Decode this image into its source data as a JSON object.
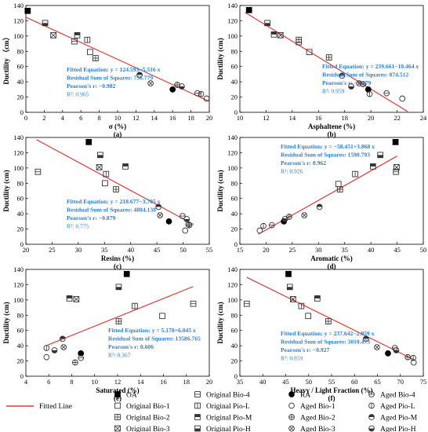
{
  "colors": {
    "fit_line": "#e53935",
    "annotation": "#2e7fd0",
    "axis": "#000000",
    "marker": "#333333"
  },
  "chart_data": [
    {
      "panel": "(a)",
      "type": "scatter",
      "xlabel": "σ (%)",
      "ylabel": "Ductility （cm）",
      "xlim": [
        0,
        20
      ],
      "ylim": [
        0,
        140
      ],
      "xticks": [
        0,
        2,
        4,
        6,
        8,
        10,
        12,
        14,
        16,
        18,
        20
      ],
      "yticks": [
        0,
        20,
        40,
        60,
        80,
        100,
        120,
        140
      ],
      "fit": {
        "slope": -5.516,
        "intercept": 124.593,
        "x_range": [
          0,
          20
        ]
      },
      "annotation": {
        "equation": "Fitted Equation: y = 124.593−5.516 x",
        "rss": "Residual Sum of Squares: 756.779",
        "pearson": "Pearson's r: −0.982",
        "r2": "R²: 0.965"
      },
      "points": [
        {
          "x": 0.2,
          "y": 133,
          "m": "OA"
        },
        {
          "x": 2.1,
          "y": 117,
          "m": "Original Pio-H"
        },
        {
          "x": 3.0,
          "y": 101,
          "m": "Original Bio-3"
        },
        {
          "x": 5.3,
          "y": 93,
          "m": "Original Bio-4"
        },
        {
          "x": 5.6,
          "y": 101,
          "m": "Original Pio-M"
        },
        {
          "x": 6.7,
          "y": 95,
          "m": "Original Pio-L"
        },
        {
          "x": 7.0,
          "y": 79,
          "m": "Original Bio-1"
        },
        {
          "x": 7.6,
          "y": 71,
          "m": "Original Bio-2"
        },
        {
          "x": 12.4,
          "y": 49,
          "m": "Aged Pio-M"
        },
        {
          "x": 13.6,
          "y": 38,
          "m": "Aged Bio-3"
        },
        {
          "x": 16.0,
          "y": 30,
          "m": "RA"
        },
        {
          "x": 16.5,
          "y": 36,
          "m": "Aged Bio-2"
        },
        {
          "x": 17.0,
          "y": 34,
          "m": "Aged Pio-H"
        },
        {
          "x": 18.7,
          "y": 25,
          "m": "Aged Bio-4"
        },
        {
          "x": 19.1,
          "y": 24,
          "m": "Aged Pio-L"
        },
        {
          "x": 19.7,
          "y": 18,
          "m": "Aged Bio-1"
        }
      ]
    },
    {
      "panel": "(b)",
      "type": "scatter",
      "xlabel": "Asphaltene (%)",
      "ylabel": "Ductility (cm)",
      "xlim": [
        10,
        24
      ],
      "ylim": [
        0,
        140
      ],
      "xticks": [
        10,
        12,
        14,
        16,
        18,
        20,
        22,
        24
      ],
      "yticks": [
        0,
        20,
        40,
        60,
        80,
        100,
        120,
        140
      ],
      "fit": {
        "slope": -10.464,
        "intercept": 239.661,
        "x_range": [
          10.4,
          22.8
        ]
      },
      "annotation": {
        "equation": "Fitted Equation: y = 239.661−10.464 x",
        "rss": "Residual Sum of Squares: 874.512",
        "pearson": "Pearson's r: −0.979",
        "r2": "R²: 0.959"
      },
      "points": [
        {
          "x": 10.7,
          "y": 134,
          "m": "OA"
        },
        {
          "x": 12.1,
          "y": 117,
          "m": "Original Pio-H"
        },
        {
          "x": 12.6,
          "y": 102,
          "m": "Original Pio-M"
        },
        {
          "x": 13.1,
          "y": 101,
          "m": "Original Bio-3"
        },
        {
          "x": 14.5,
          "y": 95,
          "m": "Original Pio-L"
        },
        {
          "x": 14.5,
          "y": 92,
          "m": "Original Bio-4"
        },
        {
          "x": 15.3,
          "y": 79,
          "m": "Original Bio-1"
        },
        {
          "x": 16.8,
          "y": 72,
          "m": "Original Bio-2"
        },
        {
          "x": 17.8,
          "y": 48,
          "m": "Aged Pio-M"
        },
        {
          "x": 18.5,
          "y": 34,
          "m": "Aged Pio-H"
        },
        {
          "x": 19.1,
          "y": 38,
          "m": "Aged Bio-3"
        },
        {
          "x": 19.4,
          "y": 37,
          "m": "Aged Bio-2"
        },
        {
          "x": 19.8,
          "y": 30,
          "m": "RA"
        },
        {
          "x": 19.9,
          "y": 24,
          "m": "Aged Pio-L"
        },
        {
          "x": 21.2,
          "y": 25,
          "m": "Aged Bio-4"
        },
        {
          "x": 22.4,
          "y": 18,
          "m": "Aged Bio-1"
        }
      ]
    },
    {
      "panel": "(c)",
      "type": "scatter",
      "xlabel": "Resins (%)",
      "ylabel": "Ductility (cm)",
      "xlim": [
        20,
        55
      ],
      "ylim": [
        0,
        140
      ],
      "xticks": [
        20,
        25,
        30,
        35,
        40,
        45,
        50,
        55
      ],
      "yticks": [
        0,
        20,
        40,
        60,
        80,
        100,
        120,
        140
      ],
      "fit": {
        "slope": -3.705,
        "intercept": 218.677,
        "x_range": [
          22,
          52
        ]
      },
      "annotation": {
        "equation": "Fitted Equation: y = 218.677−3.705 x",
        "rss": "Residual Sum of Squares: 4884.138",
        "pearson": "Pearson's r: −0.879",
        "r2": "R²: 0.775"
      },
      "points": [
        {
          "x": 22.3,
          "y": 95,
          "m": "Original Bio-4"
        },
        {
          "x": 32.0,
          "y": 134,
          "m": "OA"
        },
        {
          "x": 34.2,
          "y": 117,
          "m": "Original Pio-H"
        },
        {
          "x": 34.0,
          "y": 101,
          "m": "Original Bio-3"
        },
        {
          "x": 35.3,
          "y": 92,
          "m": "Original Pio-L"
        },
        {
          "x": 35.1,
          "y": 80,
          "m": "Original Bio-1"
        },
        {
          "x": 37.2,
          "y": 72,
          "m": "Original Bio-2"
        },
        {
          "x": 39.0,
          "y": 102,
          "m": "Original Pio-M"
        },
        {
          "x": 45.3,
          "y": 49,
          "m": "Aged Pio-M"
        },
        {
          "x": 45.6,
          "y": 38,
          "m": "Aged Bio-3"
        },
        {
          "x": 47.3,
          "y": 30,
          "m": "RA"
        },
        {
          "x": 49.9,
          "y": 37,
          "m": "Aged Bio-4"
        },
        {
          "x": 50.4,
          "y": 18,
          "m": "Aged Bio-1"
        },
        {
          "x": 50.7,
          "y": 33,
          "m": "Aged Pio-H"
        },
        {
          "x": 51.0,
          "y": 26,
          "m": "Aged Pio-L"
        },
        {
          "x": 51.2,
          "y": 25,
          "m": "Aged Bio-2"
        }
      ]
    },
    {
      "panel": "(d)",
      "type": "scatter",
      "xlabel": "Aromatic (%)",
      "ylabel": "Ductility (cm)",
      "xlim": [
        15,
        50
      ],
      "ylim": [
        0,
        140
      ],
      "xticks": [
        15,
        20,
        25,
        30,
        35,
        40,
        45,
        50
      ],
      "yticks": [
        0,
        20,
        40,
        60,
        80,
        100,
        120,
        140
      ],
      "fit": {
        "slope": 3.868,
        "intercept": -58.451,
        "x_range": [
          18.5,
          45
        ]
      },
      "annotation": {
        "equation": "Fitted Equation: y = −58.451+3.868 x",
        "rss": "Residual Sum of Squares: 1590.793",
        "pearson": "Pearson's r: 0.962",
        "r2": "R²: 0.926"
      },
      "points": [
        {
          "x": 18.8,
          "y": 18,
          "m": "Aged Bio-1"
        },
        {
          "x": 19.5,
          "y": 24,
          "m": "Aged Pio-L"
        },
        {
          "x": 21.1,
          "y": 25,
          "m": "Aged Bio-4"
        },
        {
          "x": 23.4,
          "y": 30,
          "m": "RA"
        },
        {
          "x": 23.6,
          "y": 33,
          "m": "Aged Pio-H"
        },
        {
          "x": 24.4,
          "y": 36,
          "m": "Aged Bio-2"
        },
        {
          "x": 27.3,
          "y": 38,
          "m": "Aged Bio-3"
        },
        {
          "x": 30.2,
          "y": 49,
          "m": "Aged Pio-M"
        },
        {
          "x": 33.8,
          "y": 79,
          "m": "Original Bio-1"
        },
        {
          "x": 34.1,
          "y": 72,
          "m": "Original Bio-2"
        },
        {
          "x": 37.0,
          "y": 92,
          "m": "Original Pio-L"
        },
        {
          "x": 40.4,
          "y": 102,
          "m": "Original Pio-M"
        },
        {
          "x": 41.8,
          "y": 117,
          "m": "Original Pio-H"
        },
        {
          "x": 44.7,
          "y": 134,
          "m": "OA"
        },
        {
          "x": 44.8,
          "y": 95,
          "m": "Original Bio-4"
        },
        {
          "x": 44.9,
          "y": 101,
          "m": "Original Bio-3"
        }
      ]
    },
    {
      "panel": "(e)",
      "type": "scatter",
      "xlabel": "Saturated (%)",
      "ylabel": "Ductility (cm)",
      "xlim": [
        4,
        20
      ],
      "ylim": [
        0,
        140
      ],
      "xticks": [
        4,
        6,
        8,
        10,
        12,
        14,
        16,
        18,
        20
      ],
      "yticks": [
        0,
        20,
        40,
        60,
        80,
        100,
        120,
        140
      ],
      "fit": {
        "slope": 6.045,
        "intercept": 5.178,
        "x_range": [
          5.9,
          18.6
        ]
      },
      "annotation": {
        "equation": "Fitted Equation: y = 5.178+6.045 x",
        "rss": "Residual Sum of Squares: 13586.765",
        "pearson": "Pearson's r: 0.606",
        "r2": "R²: 0.367"
      },
      "points": [
        {
          "x": 5.8,
          "y": 25,
          "m": "Aged Bio-1"
        },
        {
          "x": 5.8,
          "y": 37,
          "m": "Aged Pio-L"
        },
        {
          "x": 6.5,
          "y": 34,
          "m": "Aged Pio-H"
        },
        {
          "x": 7.2,
          "y": 49,
          "m": "Aged Pio-M"
        },
        {
          "x": 7.3,
          "y": 38,
          "m": "Aged Bio-3"
        },
        {
          "x": 7.8,
          "y": 102,
          "m": "Original Pio-M"
        },
        {
          "x": 8.3,
          "y": 18,
          "m": "Aged Bio-2"
        },
        {
          "x": 8.4,
          "y": 101,
          "m": "Original Bio-3"
        },
        {
          "x": 8.8,
          "y": 30,
          "m": "RA"
        },
        {
          "x": 8.8,
          "y": 24,
          "m": "Aged Bio-4"
        },
        {
          "x": 12.1,
          "y": 117,
          "m": "Original Pio-H"
        },
        {
          "x": 12.1,
          "y": 72,
          "m": "Original Bio-2"
        },
        {
          "x": 12.8,
          "y": 134,
          "m": "OA"
        },
        {
          "x": 13.5,
          "y": 92,
          "m": "Original Pio-L"
        },
        {
          "x": 15.9,
          "y": 79,
          "m": "Original Bio-1"
        },
        {
          "x": 18.6,
          "y": 95,
          "m": "Original Bio-4"
        }
      ]
    },
    {
      "panel": "(f)",
      "type": "scatter",
      "xlabel": "Heavy / Light Fraction (%)",
      "ylabel": "Ductility (cm)",
      "xlim": [
        35,
        75
      ],
      "ylim": [
        0,
        140
      ],
      "xticks": [
        35,
        40,
        45,
        50,
        55,
        60,
        65,
        70,
        75
      ],
      "yticks": [
        0,
        20,
        40,
        60,
        80,
        100,
        120,
        140
      ],
      "fit": {
        "slope": -2.959,
        "intercept": 237.642,
        "x_range": [
          36.5,
          73
        ]
      },
      "annotation": {
        "equation": "Fitted Equation: y = 237.642−2.959 x",
        "rss": "Residual Sum of Squares: 3010.473",
        "pearson": "Pearson's r: −0.927",
        "r2": "R²: 0.859"
      },
      "points": [
        {
          "x": 36.5,
          "y": 95,
          "m": "Original Bio-4"
        },
        {
          "x": 45.6,
          "y": 134,
          "m": "OA"
        },
        {
          "x": 45.9,
          "y": 117,
          "m": "Original Pio-H"
        },
        {
          "x": 46.6,
          "y": 101,
          "m": "Original Bio-3"
        },
        {
          "x": 48.4,
          "y": 92,
          "m": "Original Pio-L"
        },
        {
          "x": 49.9,
          "y": 79,
          "m": "Original Bio-1"
        },
        {
          "x": 51.9,
          "y": 102,
          "m": "Original Pio-M"
        },
        {
          "x": 54.3,
          "y": 72,
          "m": "Original Bio-2"
        },
        {
          "x": 62.5,
          "y": 49,
          "m": "Aged Pio-M"
        },
        {
          "x": 64.9,
          "y": 38,
          "m": "Aged Bio-3"
        },
        {
          "x": 67.3,
          "y": 30,
          "m": "RA"
        },
        {
          "x": 68.8,
          "y": 37,
          "m": "Aged Bio-4"
        },
        {
          "x": 69.1,
          "y": 34,
          "m": "Aged Pio-H"
        },
        {
          "x": 71.6,
          "y": 25,
          "m": "Aged Bio-2"
        },
        {
          "x": 72.8,
          "y": 24,
          "m": "Aged Pio-L"
        },
        {
          "x": 72.9,
          "y": 18,
          "m": "Aged Bio-1"
        }
      ]
    }
  ],
  "legend": {
    "fit_line_label": "Fitted Line",
    "items": [
      {
        "key": "OA",
        "label": "OA"
      },
      {
        "key": "Original Bio-1",
        "label": "Original Bio-1"
      },
      {
        "key": "Original Bio-2",
        "label": "Original Bio-2"
      },
      {
        "key": "Original Bio-3",
        "label": "Original Bio-3"
      },
      {
        "key": "Original Bio-4",
        "label": "Original Bio-4"
      },
      {
        "key": "Original Pio-L",
        "label": "Original Pio-L"
      },
      {
        "key": "Original Pio-M",
        "label": "Original Pio-M"
      },
      {
        "key": "Original Pio-H",
        "label": "Original Pio-H"
      },
      {
        "key": "RA",
        "label": "RA"
      },
      {
        "key": "Aged Bio-1",
        "label": "Aged Bio-1"
      },
      {
        "key": "Aged Bio-2",
        "label": "Aged Bio-2"
      },
      {
        "key": "Aged Bio-3",
        "label": "Aged Bio-3"
      },
      {
        "key": "Aged Bio-4",
        "label": "Aged Bio-4"
      },
      {
        "key": "Aged Pio-L",
        "label": "Aged Pio-L"
      },
      {
        "key": "Aged Pio-M",
        "label": "Aged Pio-M"
      },
      {
        "key": "Aged Pio-H",
        "label": "Aged Pio-H"
      }
    ]
  }
}
